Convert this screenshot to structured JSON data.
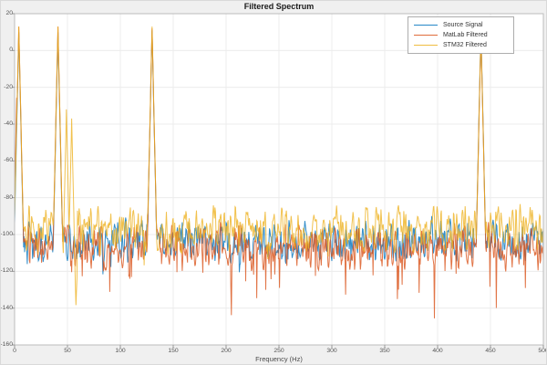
{
  "figure": {
    "background_color": "#f0f0f0",
    "plot_background_color": "#ffffff"
  },
  "chart_data": {
    "type": "line",
    "title": "Filtered Spectrum",
    "xlabel": "Frequency (Hz)",
    "ylabel": "",
    "xlim": [
      0,
      500
    ],
    "ylim": [
      -160,
      20
    ],
    "xticks": [
      0,
      50,
      100,
      150,
      200,
      250,
      300,
      350,
      400,
      450,
      500
    ],
    "yticks": [
      20,
      0,
      -20,
      -40,
      -60,
      -80,
      -100,
      -120,
      -140,
      -160
    ],
    "grid": true,
    "legend_position": "top-right",
    "grid_color": "#ececec",
    "axis_color": "#bdbdbd",
    "tick_color": "#999999",
    "series": [
      {
        "name": "Source Signal",
        "color": "#0072BD",
        "seed": 20117,
        "peaks": [
          {
            "f": 4,
            "db": 10
          },
          {
            "f": 41,
            "db": 10
          },
          {
            "f": 130,
            "db": 11
          },
          {
            "f": 441,
            "db": 12
          }
        ],
        "noise": {
          "mean": -104,
          "sigma": 8,
          "spike_prob": 0.02,
          "spike_depth": 14
        }
      },
      {
        "name": "MatLab Filtered",
        "color": "#D95319",
        "seed": 48823,
        "peaks": [
          {
            "f": 2,
            "db": -26
          },
          {
            "f": 4,
            "db": 13
          },
          {
            "f": 41,
            "db": 13
          },
          {
            "f": 130,
            "db": 12
          },
          {
            "f": 441,
            "db": 10
          }
        ],
        "noise": {
          "mean": -107,
          "sigma": 8,
          "spike_prob": 0.05,
          "spike_depth": 30
        }
      },
      {
        "name": "STM32 Filtered",
        "color": "#EDB120",
        "seed": 7741,
        "peaks": [
          {
            "f": 4,
            "db": 13
          },
          {
            "f": 41,
            "db": 13
          },
          {
            "f": 49,
            "db": -32
          },
          {
            "f": 54,
            "db": -37
          },
          {
            "f": 130,
            "db": 13
          },
          {
            "f": 441,
            "db": 11
          }
        ],
        "noise": {
          "mean": -97,
          "sigma": 9,
          "spike_prob": 0.03,
          "spike_depth": 16
        },
        "bands": [
          {
            "from": 44,
            "to": 59,
            "mean": -135,
            "sigma": 8
          }
        ]
      }
    ],
    "synthesis": {
      "step_hz": 0.5,
      "peak_slope_db_per_hz": 26
    }
  }
}
